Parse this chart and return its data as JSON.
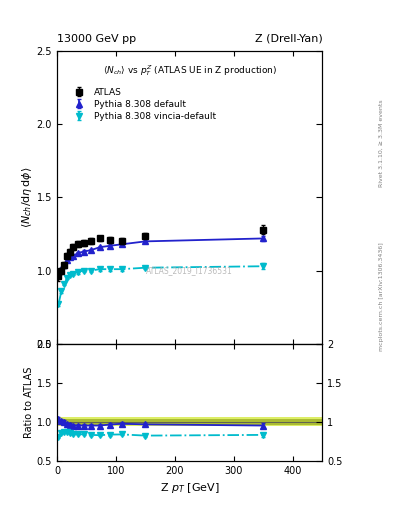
{
  "title_left": "13000 GeV pp",
  "title_right": "Z (Drell-Yan)",
  "main_title": "<N_{ch}> vs p_{T}^{Z} (ATLAS UE in Z production)",
  "ylabel_main": "<N_{ch}/dη dϕ>",
  "ylabel_ratio": "Ratio to ATLAS",
  "xlabel": "Z p_{T} [GeV]",
  "right_label_top": "Rivet 3.1.10, ≥ 3.3M events",
  "right_label_bottom": "mcplots.cern.ch [arXiv:1306.3436]",
  "watermark": "ATLAS_2019_I1736531",
  "atlas_x": [
    2.5,
    7.5,
    12.5,
    17.5,
    22.5,
    27.5,
    35.0,
    45.0,
    57.5,
    72.5,
    90.0,
    110.0,
    150.0,
    350.0
  ],
  "atlas_y": [
    0.96,
    1.0,
    1.04,
    1.1,
    1.13,
    1.16,
    1.18,
    1.19,
    1.2,
    1.22,
    1.21,
    1.2,
    1.24,
    1.28
  ],
  "atlas_yerr": [
    0.03,
    0.02,
    0.02,
    0.02,
    0.02,
    0.02,
    0.02,
    0.02,
    0.02,
    0.02,
    0.02,
    0.02,
    0.02,
    0.03
  ],
  "pythia_default_x": [
    2.5,
    7.5,
    12.5,
    17.5,
    22.5,
    27.5,
    35.0,
    45.0,
    57.5,
    72.5,
    90.0,
    110.0,
    150.0,
    350.0
  ],
  "pythia_default_y": [
    0.99,
    1.01,
    1.04,
    1.07,
    1.09,
    1.1,
    1.12,
    1.13,
    1.14,
    1.16,
    1.17,
    1.18,
    1.2,
    1.22
  ],
  "pythia_default_yerr": [
    0.01,
    0.01,
    0.01,
    0.01,
    0.01,
    0.01,
    0.01,
    0.01,
    0.01,
    0.01,
    0.01,
    0.01,
    0.01,
    0.02
  ],
  "pythia_vincia_x": [
    2.5,
    7.5,
    12.5,
    17.5,
    22.5,
    27.5,
    35.0,
    45.0,
    57.5,
    72.5,
    90.0,
    110.0,
    150.0,
    350.0
  ],
  "pythia_vincia_y": [
    0.77,
    0.86,
    0.91,
    0.95,
    0.97,
    0.98,
    0.99,
    1.0,
    1.0,
    1.01,
    1.01,
    1.01,
    1.02,
    1.03
  ],
  "pythia_vincia_yerr": [
    0.01,
    0.01,
    0.01,
    0.01,
    0.01,
    0.01,
    0.01,
    0.01,
    0.01,
    0.01,
    0.01,
    0.01,
    0.01,
    0.02
  ],
  "ratio_default_y": [
    1.03,
    1.01,
    1.0,
    0.97,
    0.965,
    0.95,
    0.952,
    0.952,
    0.952,
    0.952,
    0.965,
    0.975,
    0.967,
    0.952
  ],
  "ratio_default_yerr": [
    0.025,
    0.02,
    0.02,
    0.02,
    0.02,
    0.02,
    0.02,
    0.02,
    0.02,
    0.02,
    0.02,
    0.02,
    0.02,
    0.03
  ],
  "ratio_vincia_y": [
    0.8,
    0.86,
    0.875,
    0.863,
    0.858,
    0.845,
    0.84,
    0.84,
    0.832,
    0.828,
    0.836,
    0.838,
    0.823,
    0.832
  ],
  "ratio_vincia_yerr": [
    0.012,
    0.012,
    0.012,
    0.012,
    0.012,
    0.012,
    0.012,
    0.012,
    0.012,
    0.012,
    0.012,
    0.012,
    0.012,
    0.022
  ],
  "band_y1": 0.94,
  "band_y2": 1.06,
  "band_inner_y1": 0.965,
  "band_inner_y2": 1.035,
  "color_atlas": "black",
  "color_default": "#2222cc",
  "color_vincia": "#00bbcc",
  "color_band_outer": "#ddee66",
  "color_band_inner": "#aabb33",
  "xlim": [
    0,
    450
  ],
  "ylim_main": [
    0.5,
    2.5
  ],
  "ylim_ratio": [
    0.5,
    2.0
  ],
  "yticks_main": [
    0.5,
    1.0,
    1.5,
    2.0,
    2.5
  ],
  "yticks_ratio": [
    0.5,
    1.0,
    1.5,
    2.0
  ],
  "xticks": [
    0,
    100,
    200,
    300,
    400
  ]
}
